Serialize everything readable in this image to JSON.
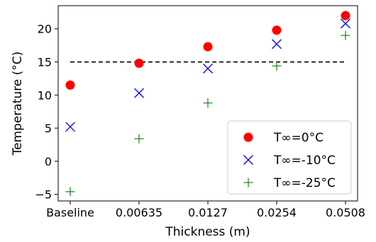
{
  "chart_data": {
    "type": "scatter",
    "categories": [
      "Baseline",
      "0.00635",
      "0.0127",
      "0.0254",
      "0.0508"
    ],
    "xlabel": "Thickness (m)",
    "ylabel": "Temperature (°C)",
    "ylim": [
      -6,
      23.5
    ],
    "yticks": [
      -5,
      0,
      5,
      10,
      15,
      20
    ],
    "ytick_labels": [
      "−5",
      "0",
      "5",
      "10",
      "15",
      "20"
    ],
    "grid": false,
    "legend_position": "bottom-right",
    "reference_line": {
      "y": 15,
      "style": "dashed",
      "color": "#000000"
    },
    "series": [
      {
        "name": "T∞=0°C",
        "marker": "circle",
        "color": "#ff0000",
        "values": [
          11.5,
          14.8,
          17.3,
          19.8,
          22.0
        ]
      },
      {
        "name": "T∞=-10°C",
        "marker": "x",
        "color": "#0000ff",
        "values": [
          5.2,
          10.3,
          14.0,
          17.7,
          20.8
        ]
      },
      {
        "name": "T∞=-25°C",
        "marker": "plus",
        "color": "#228b22",
        "values": [
          -4.6,
          3.4,
          8.8,
          14.4,
          19.0
        ]
      }
    ]
  }
}
